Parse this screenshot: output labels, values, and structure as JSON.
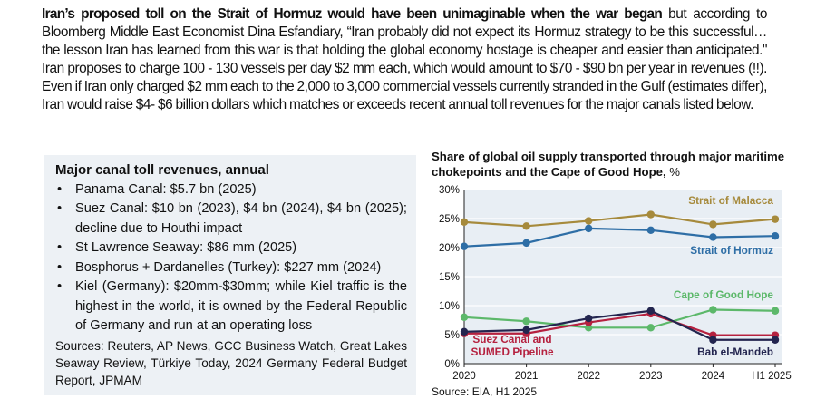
{
  "paragraph": {
    "bold_lead": "Iran’s proposed toll on the Strait of Hormuz would have been unimaginable when the war began",
    "text": " but according to Bloomberg Middle East Economist Dina Esfandiary, “Iran probably did not expect its Hormuz strategy to be this successful…the lesson Iran has learned from this war is that holding the global economy hostage is cheaper and easier than anticipated.\"  Iran proposes to charge 100 - 130 vessels per day $2 mm each, which would amount to $70 - $90 bn per year in revenues (!!).  Even if Iran only charged $2 mm each to the 2,000 to 3,000 commercial vessels currently stranded in the Gulf (estimates differ), Iran would raise $4- $6 billion dollars which matches or exceeds recent annual toll revenues for the major canals listed below."
  },
  "sidebar": {
    "title": "Major canal toll revenues, annual",
    "items": [
      "Panama Canal: $5.7 bn (2025)",
      "Suez Canal: $10 bn (2023), $4 bn (2024), $4 bn (2025); decline due to Houthi impact",
      "St Lawrence Seaway: $86 mm (2025)",
      "Bosphorus + Dardanelles (Turkey): $227 mm (2024)",
      "Kiel (Germany): $20mm-$30mm; while Kiel traffic is the highest in the world, it is owned by the Federal Republic of Germany and run at an operating loss"
    ],
    "sources": "Sources: Reuters, AP News, GCC Business Watch, Great Lakes Seaway Review, Türkiye Today, 2024 Germany Federal Budget Report, JPMAM"
  },
  "chart_data": {
    "type": "line",
    "title": "Share of global oil supply transported through major maritime chokepoints and the Cape of Good Hope,",
    "title_unit": " %",
    "categories": [
      "2020",
      "2021",
      "2022",
      "2023",
      "2024",
      "H1 2025"
    ],
    "ylim": [
      0,
      30
    ],
    "yticks": [
      "0%",
      "5%",
      "10%",
      "15%",
      "20%",
      "25%",
      "30%"
    ],
    "grid": true,
    "source": "Source: EIA, H1 2025",
    "series": [
      {
        "name": "Strait of Malacca",
        "color": "#a68a3c",
        "values": [
          24.4,
          23.7,
          24.6,
          25.7,
          24.0,
          24.9
        ]
      },
      {
        "name": "Strait of Hormuz",
        "color": "#2e6ea6",
        "values": [
          20.2,
          20.8,
          23.3,
          23.0,
          21.8,
          22.0
        ]
      },
      {
        "name": "Cape of Good Hope",
        "color": "#5cb86a",
        "values": [
          8.0,
          7.3,
          6.2,
          6.2,
          9.3,
          9.1
        ]
      },
      {
        "name": "Suez Canal and SUMED Pipeline",
        "color": "#b5213f",
        "values": [
          5.2,
          5.2,
          7.1,
          8.6,
          4.9,
          4.9
        ]
      },
      {
        "name": "Bab el-Mandeb",
        "color": "#23254f",
        "values": [
          5.5,
          5.8,
          7.8,
          9.1,
          4.1,
          4.1
        ]
      }
    ]
  }
}
